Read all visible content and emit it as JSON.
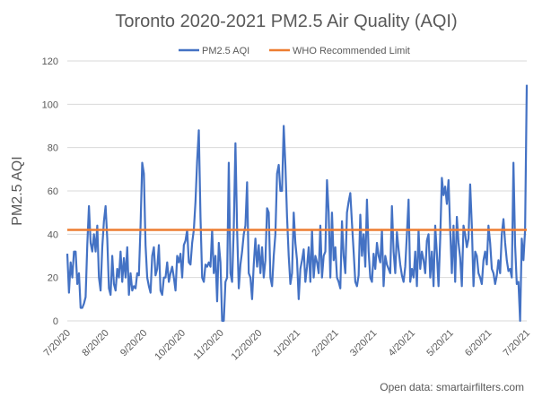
{
  "chart_data": {
    "type": "line",
    "title": "Toronto 2020-2021 PM2.5 Air Quality (AQI)",
    "xlabel": "",
    "ylabel": "PM2.5 AQI",
    "ylim": [
      0,
      120
    ],
    "yticks": [
      0,
      20,
      40,
      60,
      80,
      100,
      120
    ],
    "grid": true,
    "legend_position": "top",
    "x_tick_labels": [
      "7/20/20",
      "8/20/20",
      "9/20/20",
      "10/20/20",
      "11/20/20",
      "12/20/20",
      "1/20/21",
      "2/20/21",
      "3/20/21",
      "4/20/21",
      "5/20/21",
      "6/20/21",
      "7/20/21"
    ],
    "series": [
      {
        "name": "PM2.5 AQI",
        "color": "#4472c4",
        "x_start": "2020-07-20",
        "x_end": "2021-07-20",
        "values": [
          31,
          13,
          27,
          20,
          32,
          32,
          17,
          22,
          6,
          6,
          8,
          11,
          35,
          53,
          36,
          32,
          40,
          32,
          44,
          20,
          14,
          34,
          46,
          53,
          38,
          15,
          12,
          30,
          17,
          14,
          24,
          20,
          32,
          18,
          29,
          20,
          34,
          12,
          22,
          14,
          16,
          15,
          22,
          21,
          44,
          73,
          68,
          35,
          20,
          16,
          13,
          30,
          34,
          21,
          24,
          35,
          14,
          12,
          20,
          20,
          27,
          18,
          22,
          25,
          20,
          14,
          30,
          27,
          31,
          20,
          35,
          37,
          42,
          27,
          26,
          36,
          42,
          55,
          74,
          88,
          48,
          20,
          18,
          26,
          25,
          27,
          25,
          42,
          22,
          30,
          9,
          36,
          27,
          0,
          0,
          18,
          20,
          73,
          22,
          18,
          43,
          82,
          42,
          15,
          26,
          32,
          40,
          44,
          64,
          22,
          20,
          10,
          26,
          38,
          25,
          35,
          22,
          34,
          20,
          28,
          52,
          50,
          20,
          16,
          30,
          40,
          68,
          72,
          60,
          60,
          90,
          72,
          48,
          30,
          17,
          22,
          50,
          36,
          28,
          10,
          24,
          28,
          33,
          18,
          25,
          34,
          18,
          42,
          20,
          30,
          27,
          22,
          44,
          20,
          30,
          32,
          65,
          50,
          20,
          50,
          28,
          34,
          20,
          18,
          15,
          46,
          30,
          22,
          50,
          55,
          59,
          45,
          32,
          18,
          16,
          21,
          49,
          30,
          40,
          25,
          56,
          32,
          20,
          18,
          31,
          24,
          36,
          30,
          27,
          42,
          16,
          30,
          26,
          24,
          22,
          53,
          32,
          22,
          41,
          33,
          26,
          21,
          18,
          25,
          40,
          56,
          18,
          24,
          20,
          32,
          16,
          42,
          24,
          32,
          28,
          22,
          37,
          40,
          20,
          32,
          16,
          44,
          31,
          16,
          38,
          66,
          58,
          62,
          54,
          65,
          42,
          22,
          44,
          18,
          48,
          36,
          29,
          16,
          44,
          40,
          34,
          38,
          63,
          44,
          16,
          32,
          30,
          22,
          20,
          17,
          28,
          32,
          26,
          44,
          36,
          24,
          22,
          17,
          21,
          28,
          22,
          40,
          47,
          36,
          28,
          23,
          24,
          20,
          73,
          35,
          17,
          18,
          0,
          38,
          28,
          42,
          109
        ]
      },
      {
        "name": "WHO Recommended Limit",
        "color": "#ed7d31",
        "constant_value": 42
      }
    ]
  },
  "footer": {
    "source": "Open data: smartairfilters.com"
  }
}
